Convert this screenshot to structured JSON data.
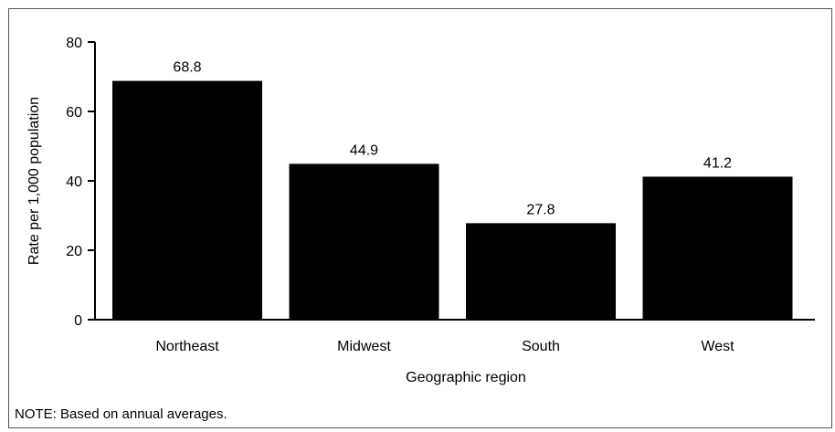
{
  "chart_data": {
    "type": "bar",
    "categories": [
      "Northeast",
      "Midwest",
      "South",
      "West"
    ],
    "values": [
      68.8,
      44.9,
      27.8,
      41.2
    ],
    "data_labels": [
      "68.8",
      "44.9",
      "27.8",
      "41.2"
    ],
    "xlabel": "Geographic region",
    "ylabel": "Rate per 1,000 population",
    "ylim": [
      0,
      80
    ],
    "yticks": [
      0,
      20,
      40,
      60,
      80
    ],
    "grid": false,
    "bar_color": "#000000"
  },
  "note": "NOTE: Based on annual averages."
}
